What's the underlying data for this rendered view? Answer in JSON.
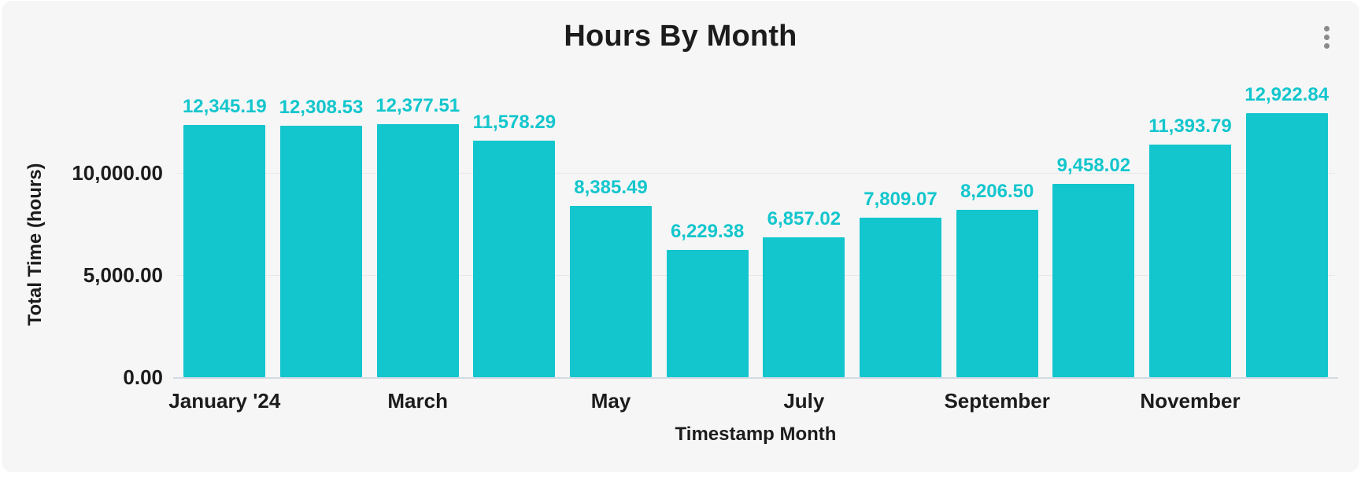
{
  "card": {
    "menu": {
      "icon": "kebab-vertical"
    }
  },
  "chart_data": {
    "type": "bar",
    "title": "Hours By Month",
    "xlabel": "Timestamp Month",
    "ylabel": "Total Time (hours)",
    "values": [
      12345.19,
      12308.53,
      12377.51,
      11578.29,
      8385.49,
      6229.38,
      6857.02,
      7809.07,
      8206.5,
      9458.02,
      11393.79,
      12922.84
    ],
    "bar_value_labels": [
      "12,345.19",
      "12,308.53",
      "12,377.51",
      "11,578.29",
      "8,385.49",
      "6,229.38",
      "6,857.02",
      "7,809.07",
      "8,206.50",
      "9,458.02",
      "11,393.79",
      "12,922.84"
    ],
    "x_tick_labels": [
      "January '24",
      "March",
      "May",
      "July",
      "September",
      "November"
    ],
    "x_tick_bar_indices": [
      0,
      2,
      4,
      6,
      8,
      10
    ],
    "y_ticks": [
      {
        "value": 0,
        "label": "0.00"
      },
      {
        "value": 5000,
        "label": "5,000.00"
      },
      {
        "value": 10000,
        "label": "10,000.00"
      }
    ],
    "ylim": [
      0,
      13000
    ],
    "grid": true,
    "legend": "none",
    "colors": {
      "bar": "#13c6cd",
      "value_label": "#13c6cd",
      "axis_text": "#1c1c1c",
      "gridline": "#e8e8e9",
      "baseline": "#cfdbe4",
      "card_bg": "#f6f6f6",
      "page_bg": "#ffffff",
      "menu_icon": "#8a8a8a"
    }
  }
}
